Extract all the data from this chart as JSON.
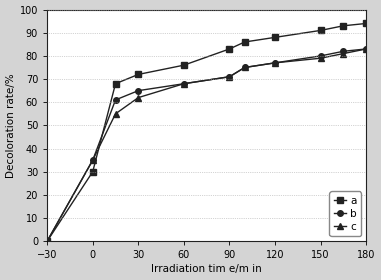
{
  "series": {
    "a": {
      "x": [
        -30,
        0,
        15,
        30,
        60,
        90,
        100,
        120,
        150,
        165,
        180
      ],
      "y": [
        0,
        30,
        68,
        72,
        76,
        83,
        86,
        88,
        91,
        93,
        94
      ],
      "marker": "s",
      "label": "a"
    },
    "b": {
      "x": [
        -30,
        0,
        15,
        30,
        60,
        90,
        100,
        120,
        150,
        165,
        180
      ],
      "y": [
        0,
        35,
        61,
        65,
        68,
        71,
        75,
        77,
        80,
        82,
        83
      ],
      "marker": "o",
      "label": "b"
    },
    "c": {
      "x": [
        -30,
        0,
        15,
        30,
        60,
        90,
        100,
        120,
        150,
        165,
        180
      ],
      "y": [
        0,
        35,
        55,
        62,
        68,
        71,
        75,
        77,
        79,
        81,
        83
      ],
      "marker": "^",
      "label": "c"
    }
  },
  "xlabel": "Irradiation tim e/m in",
  "ylabel": "Decoloration rate/%",
  "xlim": [
    -30,
    180
  ],
  "ylim": [
    0,
    100
  ],
  "xticks": [
    -30,
    0,
    30,
    60,
    90,
    120,
    150,
    180
  ],
  "yticks": [
    0,
    10,
    20,
    30,
    40,
    50,
    60,
    70,
    80,
    90,
    100
  ],
  "line_color": "#222222",
  "marker_size": 4,
  "line_width": 1.0,
  "figure_facecolor": "#d4d4d4",
  "axes_facecolor": "#ffffff",
  "font_size": 7.5,
  "tick_labelsize": 7
}
